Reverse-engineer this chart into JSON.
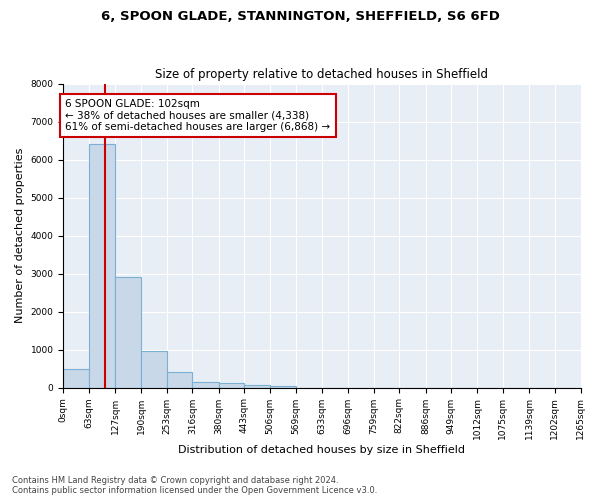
{
  "title1": "6, SPOON GLADE, STANNINGTON, SHEFFIELD, S6 6FD",
  "title2": "Size of property relative to detached houses in Sheffield",
  "xlabel": "Distribution of detached houses by size in Sheffield",
  "ylabel": "Number of detached properties",
  "bin_edges": [
    0,
    63,
    127,
    190,
    253,
    316,
    380,
    443,
    506,
    569,
    633,
    696,
    759,
    822,
    886,
    949,
    1012,
    1075,
    1139,
    1202,
    1265
  ],
  "bar_heights": [
    490,
    6400,
    2900,
    950,
    420,
    155,
    120,
    80,
    55,
    0,
    0,
    0,
    0,
    0,
    0,
    0,
    0,
    0,
    0,
    0
  ],
  "bar_color": "#c8d8e8",
  "bar_edge_color": "#7ab0d4",
  "property_size": 102,
  "vline_color": "#cc0000",
  "annotation_text": "6 SPOON GLADE: 102sqm\n← 38% of detached houses are smaller (4,338)\n61% of semi-detached houses are larger (6,868) →",
  "annotation_box_color": "#ffffff",
  "annotation_box_edge_color": "#cc0000",
  "ylim": [
    0,
    8000
  ],
  "yticks": [
    0,
    1000,
    2000,
    3000,
    4000,
    5000,
    6000,
    7000,
    8000
  ],
  "background_color": "#e8eef5",
  "footer_text": "Contains HM Land Registry data © Crown copyright and database right 2024.\nContains public sector information licensed under the Open Government Licence v3.0.",
  "title1_fontsize": 9.5,
  "title2_fontsize": 8.5,
  "xlabel_fontsize": 8,
  "ylabel_fontsize": 8,
  "tick_fontsize": 6.5,
  "annotation_fontsize": 7.5,
  "footer_fontsize": 6
}
